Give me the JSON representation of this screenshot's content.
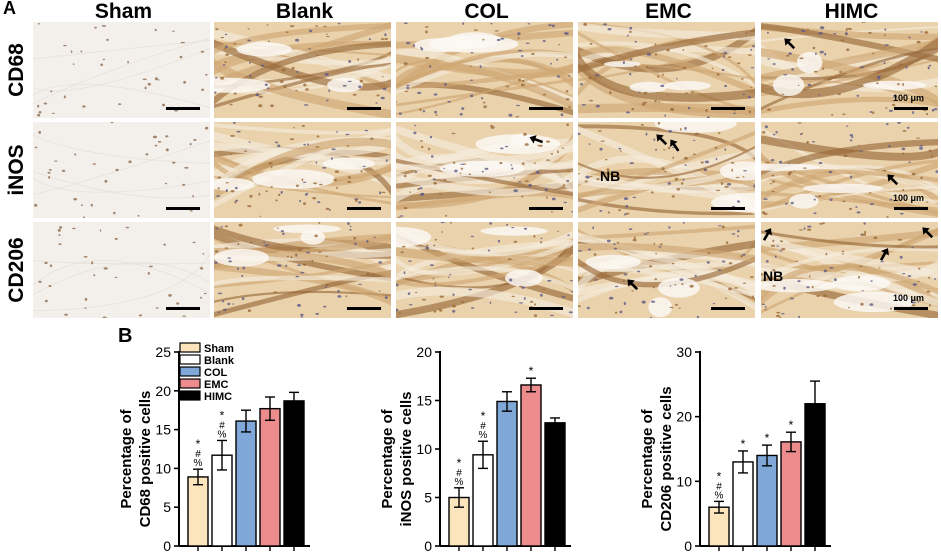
{
  "panel_a": {
    "letter": "A",
    "columns": [
      "Sham",
      "Blank",
      "COL",
      "EMC",
      "HIMC"
    ],
    "rows": [
      "CD68",
      "iNOS",
      "CD206"
    ],
    "scale_label": "100 μm",
    "annotation_nb": "NB",
    "tile_colors": {
      "sham": "#f3f0ec",
      "stain_light": "#e9d2ac",
      "stain_mid": "#cfa873",
      "stain_dark": "#9a6a3a",
      "nuclei": "#5e5a86"
    }
  },
  "panel_b": {
    "letter": "B"
  },
  "legend": {
    "items": [
      {
        "label": "Sham",
        "color": "#fce4bd"
      },
      {
        "label": "Blank",
        "color": "#ffffff"
      },
      {
        "label": "COL",
        "color": "#7fa7d8"
      },
      {
        "label": "EMC",
        "color": "#ec8c8c"
      },
      {
        "label": "HIMC",
        "color": "#000000"
      }
    ]
  },
  "chart_data": [
    {
      "type": "bar",
      "ylabel": "Percentage of\nCD68 positive cells",
      "categories": [
        "Sham",
        "Blank",
        "COL",
        "EMC",
        "HIMC"
      ],
      "values": [
        8.9,
        11.7,
        16.1,
        17.7,
        18.7
      ],
      "errors": [
        1.0,
        1.9,
        1.4,
        1.5,
        1.1
      ],
      "annotations": [
        "*\n#\n%",
        "*\n#\n%",
        "",
        "",
        ""
      ],
      "ylim": [
        0,
        25
      ],
      "yticks": [
        0,
        5,
        10,
        15,
        20,
        25
      ]
    },
    {
      "type": "bar",
      "ylabel": "Percentage of\niNOS positive cells",
      "categories": [
        "Sham",
        "Blank",
        "COL",
        "EMC",
        "HIMC"
      ],
      "values": [
        5.0,
        9.4,
        14.9,
        16.6,
        12.7
      ],
      "errors": [
        1.0,
        1.4,
        1.0,
        0.7,
        0.5
      ],
      "annotations": [
        "*\n#\n%",
        "*\n#\n%",
        "",
        "*",
        ""
      ],
      "ylim": [
        0,
        20
      ],
      "yticks": [
        0,
        5,
        10,
        15,
        20
      ]
    },
    {
      "type": "bar",
      "ylabel": "Percentage of\nCD206 positive cells",
      "categories": [
        "Sham",
        "Blank",
        "COL",
        "EMC",
        "HIMC"
      ],
      "values": [
        6.0,
        13.0,
        14.0,
        16.1,
        22.0
      ],
      "errors": [
        0.9,
        1.7,
        1.6,
        1.5,
        3.5
      ],
      "annotations": [
        "*\n#\n%",
        "*",
        "*",
        "*",
        ""
      ],
      "ylim": [
        0,
        30
      ],
      "yticks": [
        0,
        10,
        20,
        30
      ]
    }
  ]
}
